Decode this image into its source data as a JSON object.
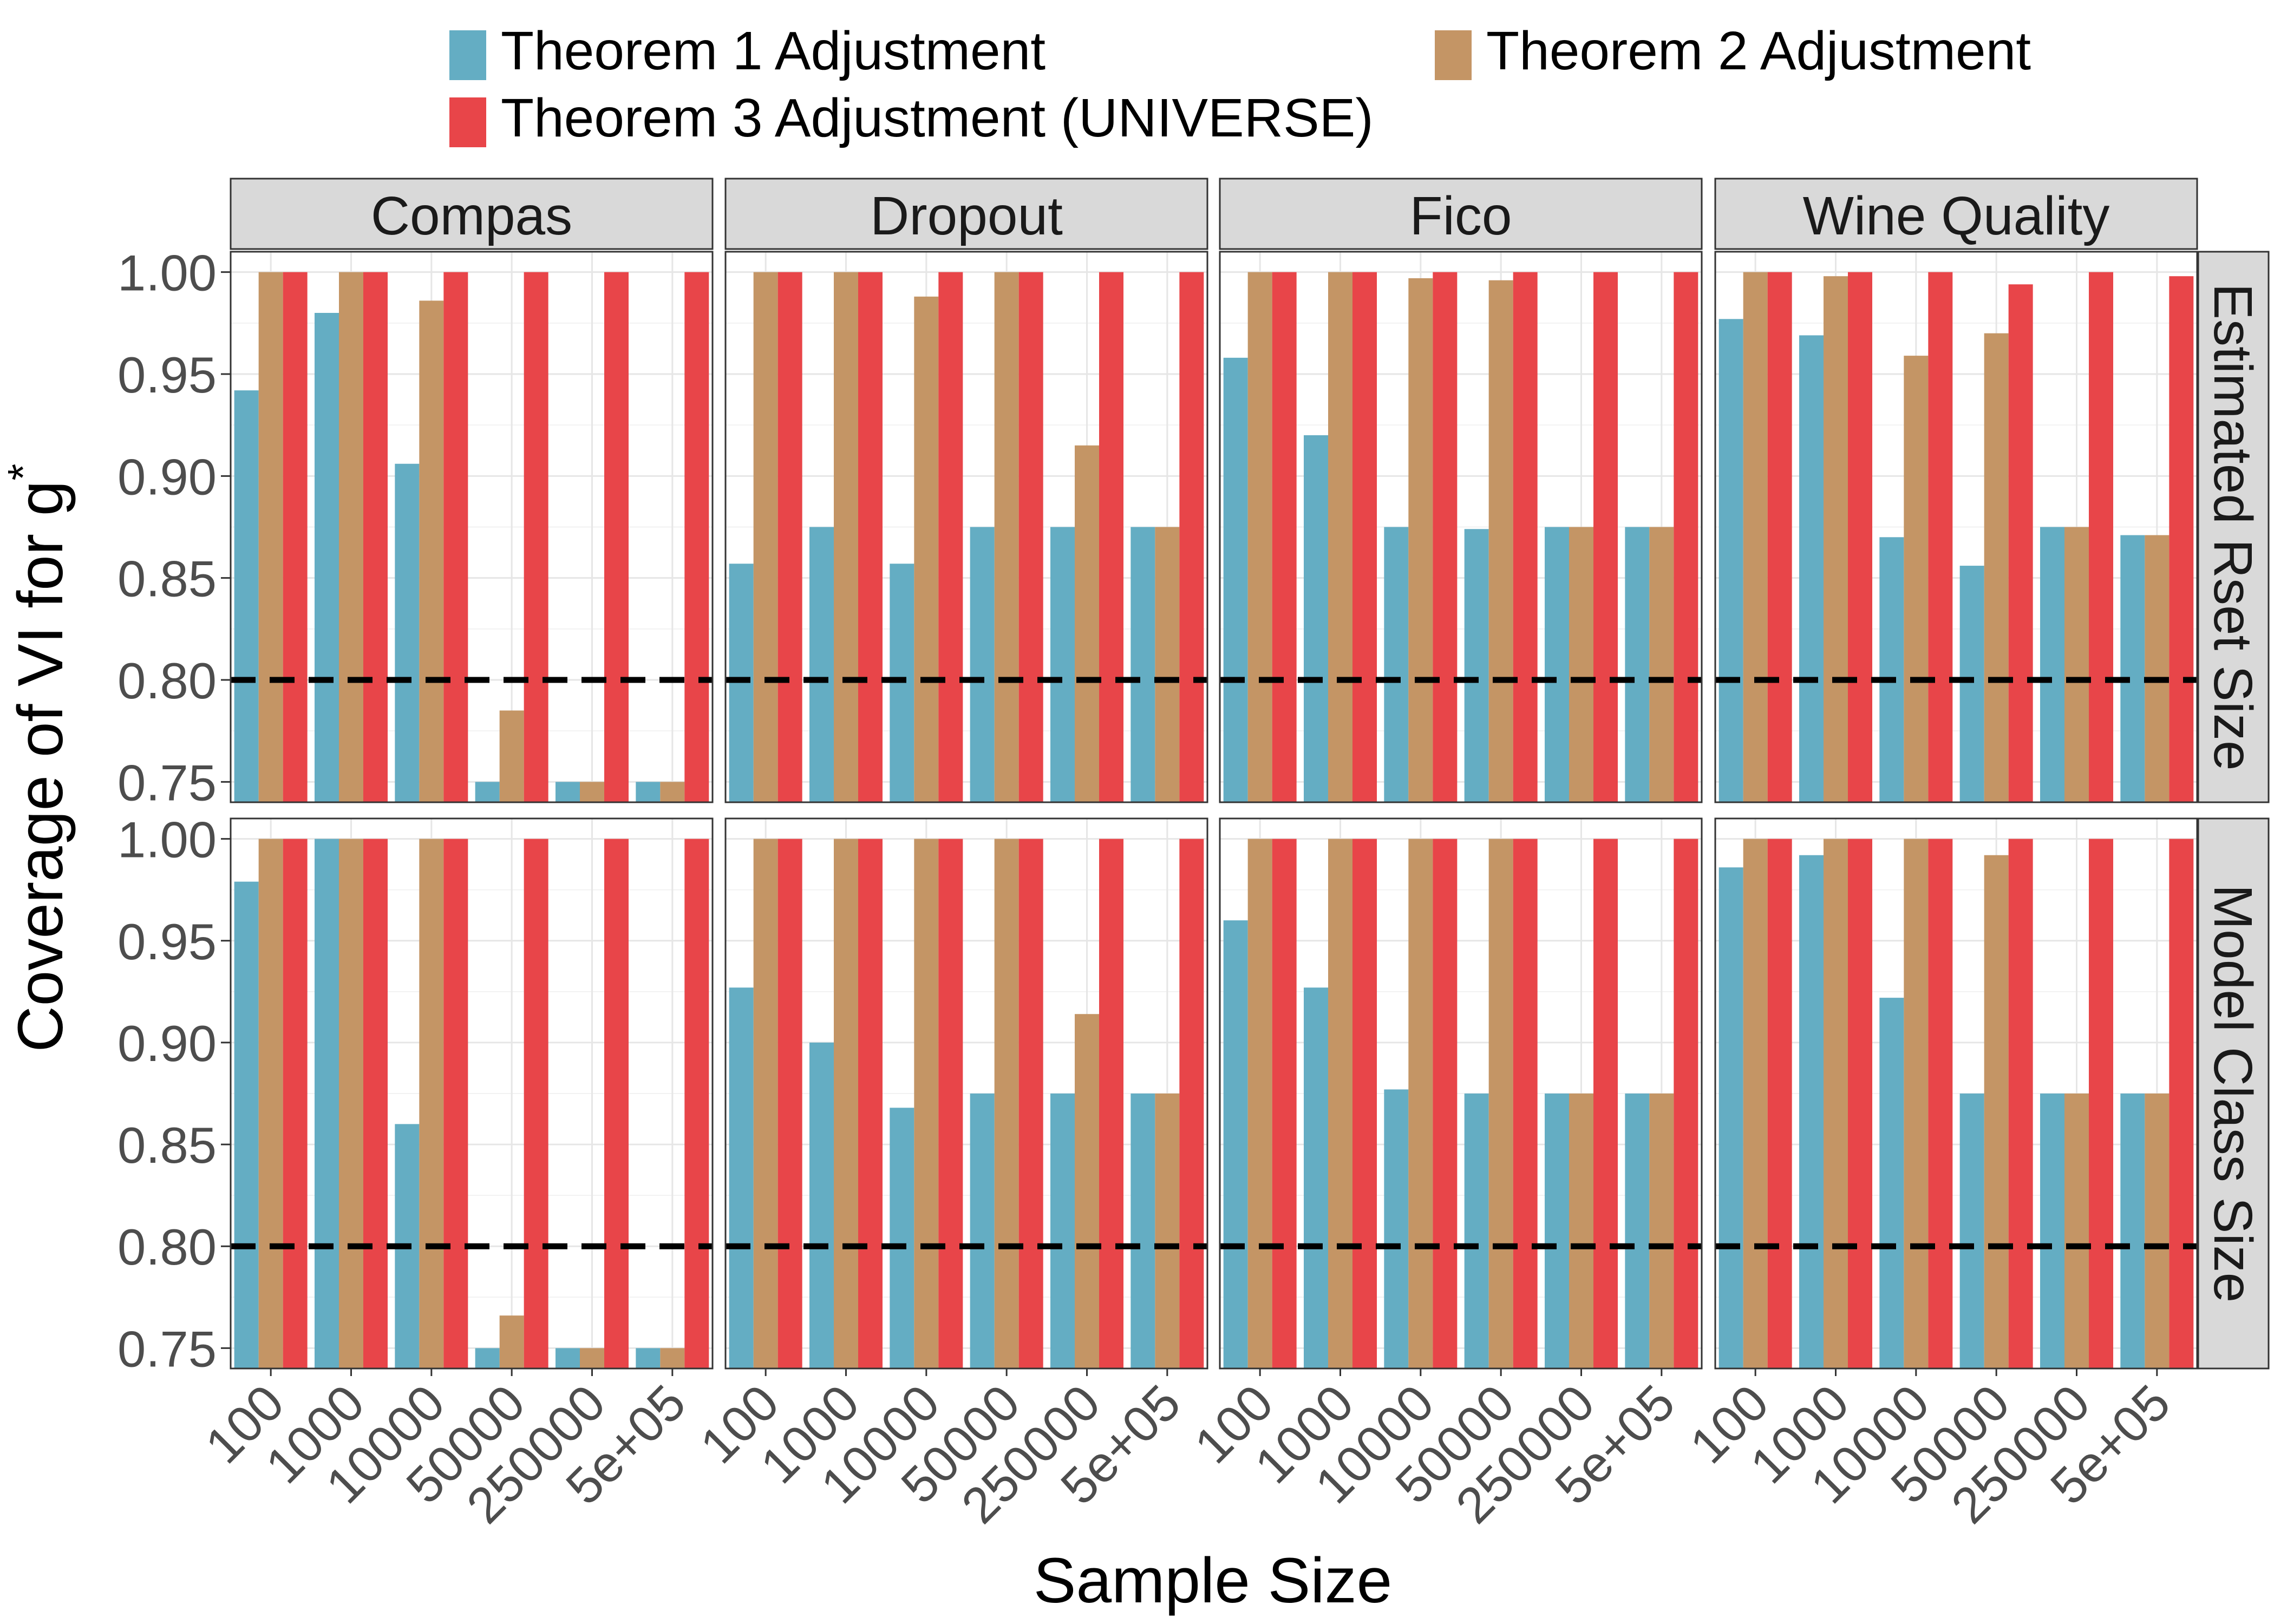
{
  "chart_data": {
    "type": "bar",
    "facet_layout": "grid",
    "y_axis_label": "Coverage of VI for g",
    "y_axis_label_superscript": "*",
    "x_axis_label": "Sample Size",
    "ylim": [
      0.74,
      1.01
    ],
    "y_ticks": [
      "0.75",
      "0.80",
      "0.85",
      "0.90",
      "0.95",
      "1.00"
    ],
    "categories": [
      "100",
      "1000",
      "10000",
      "50000",
      "250000",
      "5e+05"
    ],
    "reference_line": 0.8,
    "legend_position": "top",
    "series": [
      {
        "key": "t1",
        "name": "Theorem 1 Adjustment",
        "color": "#64adc3"
      },
      {
        "key": "t2",
        "name": "Theorem 2 Adjustment",
        "color": "#c49565"
      },
      {
        "key": "t3",
        "name": "Theorem 3 Adjustment (UNIVERSE)",
        "color": "#e84549"
      }
    ],
    "legend_order": [
      "t1",
      "t2",
      "t3"
    ],
    "columns": [
      "Compas",
      "Dropout",
      "Fico",
      "Wine Quality"
    ],
    "rows": [
      "Estimated Rset Size",
      "Model Class Size"
    ],
    "panels": [
      [
        {
          "t1": [
            0.942,
            0.98,
            0.906,
            0.75,
            0.75,
            0.75
          ],
          "t2": [
            1.0,
            1.0,
            0.986,
            0.785,
            0.75,
            0.75
          ],
          "t3": [
            1.0,
            1.0,
            1.0,
            1.0,
            1.0,
            1.0
          ]
        },
        {
          "t1": [
            0.857,
            0.875,
            0.857,
            0.875,
            0.875,
            0.875
          ],
          "t2": [
            1.0,
            1.0,
            0.988,
            1.0,
            0.915,
            0.875
          ],
          "t3": [
            1.0,
            1.0,
            1.0,
            1.0,
            1.0,
            1.0
          ]
        },
        {
          "t1": [
            0.958,
            0.92,
            0.875,
            0.874,
            0.875,
            0.875
          ],
          "t2": [
            1.0,
            1.0,
            0.997,
            0.996,
            0.875,
            0.875
          ],
          "t3": [
            1.0,
            1.0,
            1.0,
            1.0,
            1.0,
            1.0
          ]
        },
        {
          "t1": [
            0.977,
            0.969,
            0.87,
            0.856,
            0.875,
            0.871
          ],
          "t2": [
            1.0,
            0.998,
            0.959,
            0.97,
            0.875,
            0.871
          ],
          "t3": [
            1.0,
            1.0,
            1.0,
            0.994,
            1.0,
            0.998
          ]
        }
      ],
      [
        {
          "t1": [
            0.979,
            1.0,
            0.86,
            0.75,
            0.75,
            0.75
          ],
          "t2": [
            1.0,
            1.0,
            1.0,
            0.766,
            0.75,
            0.75
          ],
          "t3": [
            1.0,
            1.0,
            1.0,
            1.0,
            1.0,
            1.0
          ]
        },
        {
          "t1": [
            0.927,
            0.9,
            0.868,
            0.875,
            0.875,
            0.875
          ],
          "t2": [
            1.0,
            1.0,
            1.0,
            1.0,
            0.914,
            0.875
          ],
          "t3": [
            1.0,
            1.0,
            1.0,
            1.0,
            1.0,
            1.0
          ]
        },
        {
          "t1": [
            0.96,
            0.927,
            0.877,
            0.875,
            0.875,
            0.875
          ],
          "t2": [
            1.0,
            1.0,
            1.0,
            1.0,
            0.875,
            0.875
          ],
          "t3": [
            1.0,
            1.0,
            1.0,
            1.0,
            1.0,
            1.0
          ]
        },
        {
          "t1": [
            0.986,
            0.992,
            0.922,
            0.875,
            0.875,
            0.875
          ],
          "t2": [
            1.0,
            1.0,
            1.0,
            0.992,
            0.875,
            0.875
          ],
          "t3": [
            1.0,
            1.0,
            1.0,
            1.0,
            1.0,
            1.0
          ]
        }
      ]
    ]
  }
}
